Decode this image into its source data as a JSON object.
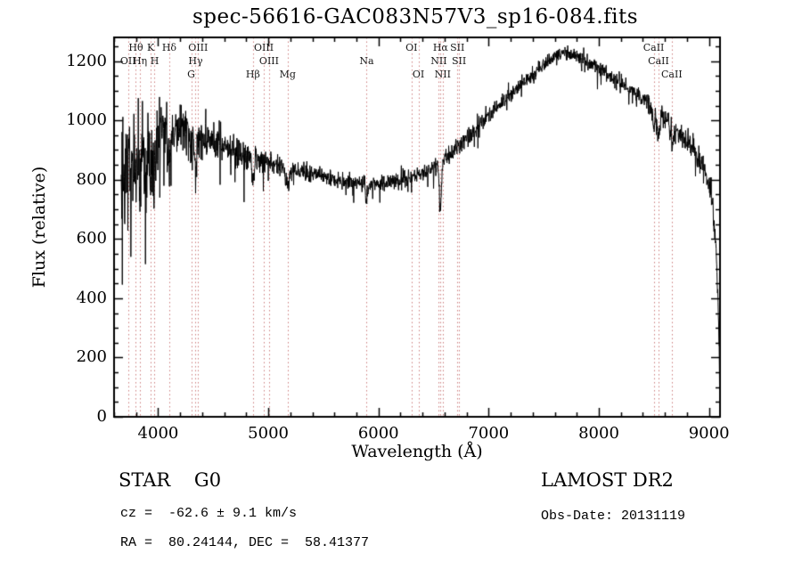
{
  "title": "spec-56616-GAC083N57V3_sp16-084.fits",
  "footer": {
    "classification": "STAR    G0",
    "survey": "LAMOST DR2",
    "cz": "cz =  -62.6 ± 9.1 km/s",
    "obs_date": "Obs-Date: 20131119",
    "coords": "RA =  80.24144, DEC =  58.41377"
  },
  "colors": {
    "spectrum": "#000000",
    "axis": "#000000",
    "line_marker": "#cc7d7d",
    "background": "#ffffff"
  },
  "chart_data": {
    "type": "line",
    "title": "spec-56616-GAC083N57V3_sp16-084.fits",
    "xlabel": "Wavelength (Å)",
    "ylabel": "Flux (relative)",
    "xlim": [
      3600,
      9100
    ],
    "ylim": [
      0,
      1280
    ],
    "x_ticks": [
      4000,
      5000,
      6000,
      7000,
      8000,
      9000
    ],
    "y_ticks": [
      0,
      200,
      400,
      600,
      800,
      1000,
      1200
    ],
    "x_minor_step": 200,
    "y_minor_step": 50,
    "grid": false,
    "legend": "none",
    "wavelength_start": 3665,
    "wavelength_end": 9100,
    "sample_step": 2.5,
    "noise_seed": 20131119,
    "continuum": [
      [
        3650,
        830
      ],
      [
        3700,
        845
      ],
      [
        3750,
        870
      ],
      [
        3800,
        895
      ],
      [
        3900,
        935
      ],
      [
        4000,
        955
      ],
      [
        4100,
        965
      ],
      [
        4200,
        958
      ],
      [
        4300,
        948
      ],
      [
        4400,
        938
      ],
      [
        4600,
        905
      ],
      [
        4800,
        880
      ],
      [
        5000,
        858
      ],
      [
        5200,
        842
      ],
      [
        5400,
        818
      ],
      [
        5600,
        800
      ],
      [
        5800,
        790
      ],
      [
        5950,
        786
      ],
      [
        6100,
        793
      ],
      [
        6250,
        803
      ],
      [
        6400,
        822
      ],
      [
        6550,
        852
      ],
      [
        6700,
        905
      ],
      [
        6850,
        955
      ],
      [
        7000,
        1020
      ],
      [
        7150,
        1070
      ],
      [
        7300,
        1120
      ],
      [
        7450,
        1170
      ],
      [
        7600,
        1215
      ],
      [
        7700,
        1228
      ],
      [
        7800,
        1212
      ],
      [
        7900,
        1196
      ],
      [
        8000,
        1178
      ],
      [
        8100,
        1152
      ],
      [
        8200,
        1128
      ],
      [
        8300,
        1098
      ],
      [
        8400,
        1068
      ],
      [
        8500,
        1038
      ],
      [
        8600,
        1008
      ],
      [
        8700,
        972
      ],
      [
        8800,
        928
      ],
      [
        8900,
        875
      ],
      [
        8960,
        830
      ],
      [
        9020,
        760
      ],
      [
        9060,
        600
      ],
      [
        9085,
        350
      ],
      [
        9100,
        60
      ]
    ],
    "noise_amplitude": [
      [
        3650,
        190
      ],
      [
        3750,
        185
      ],
      [
        3850,
        165
      ],
      [
        3950,
        150
      ],
      [
        4050,
        125
      ],
      [
        4200,
        100
      ],
      [
        4400,
        75
      ],
      [
        4600,
        55
      ],
      [
        4900,
        45
      ],
      [
        5300,
        32
      ],
      [
        5800,
        27
      ],
      [
        6300,
        30
      ],
      [
        6700,
        32
      ],
      [
        7200,
        27
      ],
      [
        7700,
        26
      ],
      [
        8200,
        30
      ],
      [
        8700,
        38
      ],
      [
        9000,
        45
      ],
      [
        9100,
        40
      ]
    ],
    "absorption_features": [
      [
        3798,
        120,
        8
      ],
      [
        3835,
        130,
        8
      ],
      [
        3889,
        150,
        8
      ],
      [
        3933,
        170,
        10
      ],
      [
        3968,
        150,
        10
      ],
      [
        4101,
        110,
        10
      ],
      [
        4300,
        50,
        18
      ],
      [
        4340,
        90,
        10
      ],
      [
        4861,
        90,
        10
      ],
      [
        5175,
        55,
        20
      ],
      [
        5893,
        55,
        12
      ],
      [
        6563,
        150,
        10
      ],
      [
        8498,
        55,
        10
      ],
      [
        8542,
        75,
        12
      ],
      [
        8662,
        65,
        12
      ]
    ],
    "spectral_lines": [
      {
        "label": "Hθ",
        "wavelength": 3798,
        "row": 0
      },
      {
        "label": "K",
        "wavelength": 3933,
        "row": 0
      },
      {
        "label": "Hδ",
        "wavelength": 4101,
        "row": 0
      },
      {
        "label": "OIII",
        "wavelength": 4363,
        "row": 0
      },
      {
        "label": "OIII",
        "wavelength": 4959,
        "row": 0
      },
      {
        "label": "OI",
        "wavelength": 6300,
        "row": 0
      },
      {
        "label": "Hα",
        "wavelength": 6563,
        "row": 0
      },
      {
        "label": "SII",
        "wavelength": 6716,
        "row": 0
      },
      {
        "label": "CaII",
        "wavelength": 8498,
        "row": 0
      },
      {
        "label": "OII",
        "wavelength": 3727,
        "row": 1
      },
      {
        "label": "Hη",
        "wavelength": 3835,
        "row": 1
      },
      {
        "label": "H",
        "wavelength": 3968,
        "row": 1
      },
      {
        "label": "Hγ",
        "wavelength": 4340,
        "row": 1
      },
      {
        "label": "OIII",
        "wavelength": 5007,
        "row": 1
      },
      {
        "label": "Na",
        "wavelength": 5893,
        "row": 1
      },
      {
        "label": "NII",
        "wavelength": 6548,
        "row": 1
      },
      {
        "label": "SII",
        "wavelength": 6731,
        "row": 1
      },
      {
        "label": "CaII",
        "wavelength": 8542,
        "row": 1
      },
      {
        "label": "G",
        "wavelength": 4300,
        "row": 2
      },
      {
        "label": "Hβ",
        "wavelength": 4861,
        "row": 2
      },
      {
        "label": "Mg",
        "wavelength": 5175,
        "row": 2
      },
      {
        "label": "OI",
        "wavelength": 6363,
        "row": 2
      },
      {
        "label": "NII",
        "wavelength": 6583,
        "row": 2
      },
      {
        "label": "CaII",
        "wavelength": 8662,
        "row": 2
      }
    ]
  }
}
